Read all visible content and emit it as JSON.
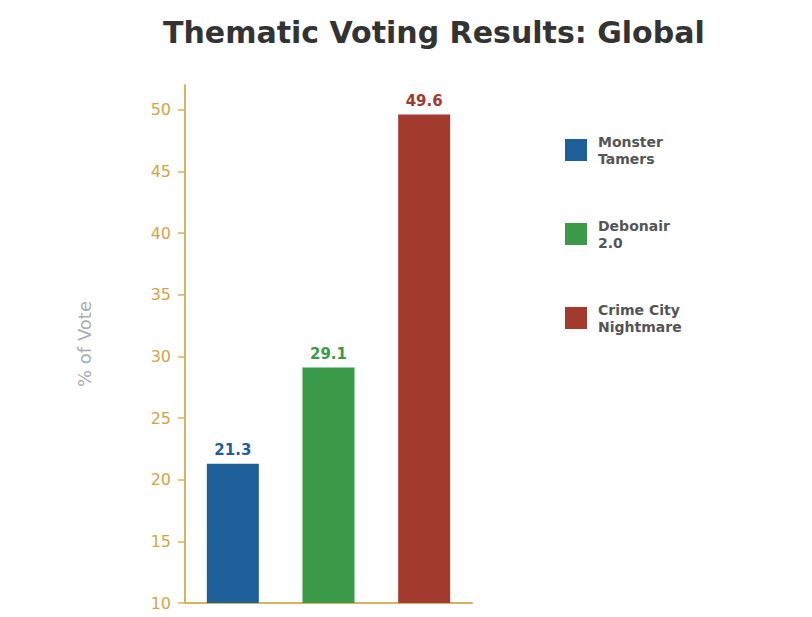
{
  "chart_data": {
    "type": "bar",
    "title": "Thematic Voting Results: Global",
    "y_label": "% of Vote",
    "categories": [
      "Monster Tamers",
      "Debonair 2.0",
      "Crime City Nightmare"
    ],
    "values": [
      21.3,
      29.1,
      49.6
    ],
    "colors": [
      "#1f5f99",
      "#3a9a48",
      "#a33a2e"
    ],
    "ylim": [
      10,
      52
    ],
    "yticks": [
      10,
      15,
      20,
      25,
      30,
      35,
      40,
      45,
      50
    ],
    "grid": false,
    "data_labels": true,
    "legend": "right",
    "tick_labels": "y"
  }
}
